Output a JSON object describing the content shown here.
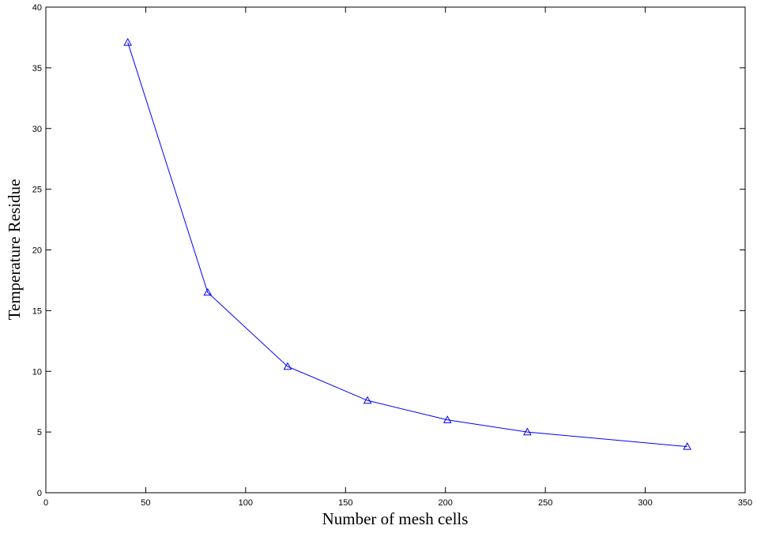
{
  "chart_data": {
    "type": "line",
    "title": "",
    "xlabel": "Number of mesh cells",
    "ylabel": "Temperature Residue",
    "xlim": [
      0,
      350
    ],
    "ylim": [
      0,
      40
    ],
    "xticks": [
      0,
      50,
      100,
      150,
      200,
      250,
      300,
      350
    ],
    "yticks": [
      0,
      5,
      10,
      15,
      20,
      25,
      30,
      35,
      40
    ],
    "grid": false,
    "legend": "none",
    "series": [
      {
        "color": "#0000ff",
        "marker": "triangle",
        "x": [
          41,
          81,
          121,
          161,
          201,
          241,
          321
        ],
        "y": [
          37.1,
          16.5,
          10.4,
          7.6,
          6.0,
          5.0,
          3.8
        ]
      }
    ]
  }
}
